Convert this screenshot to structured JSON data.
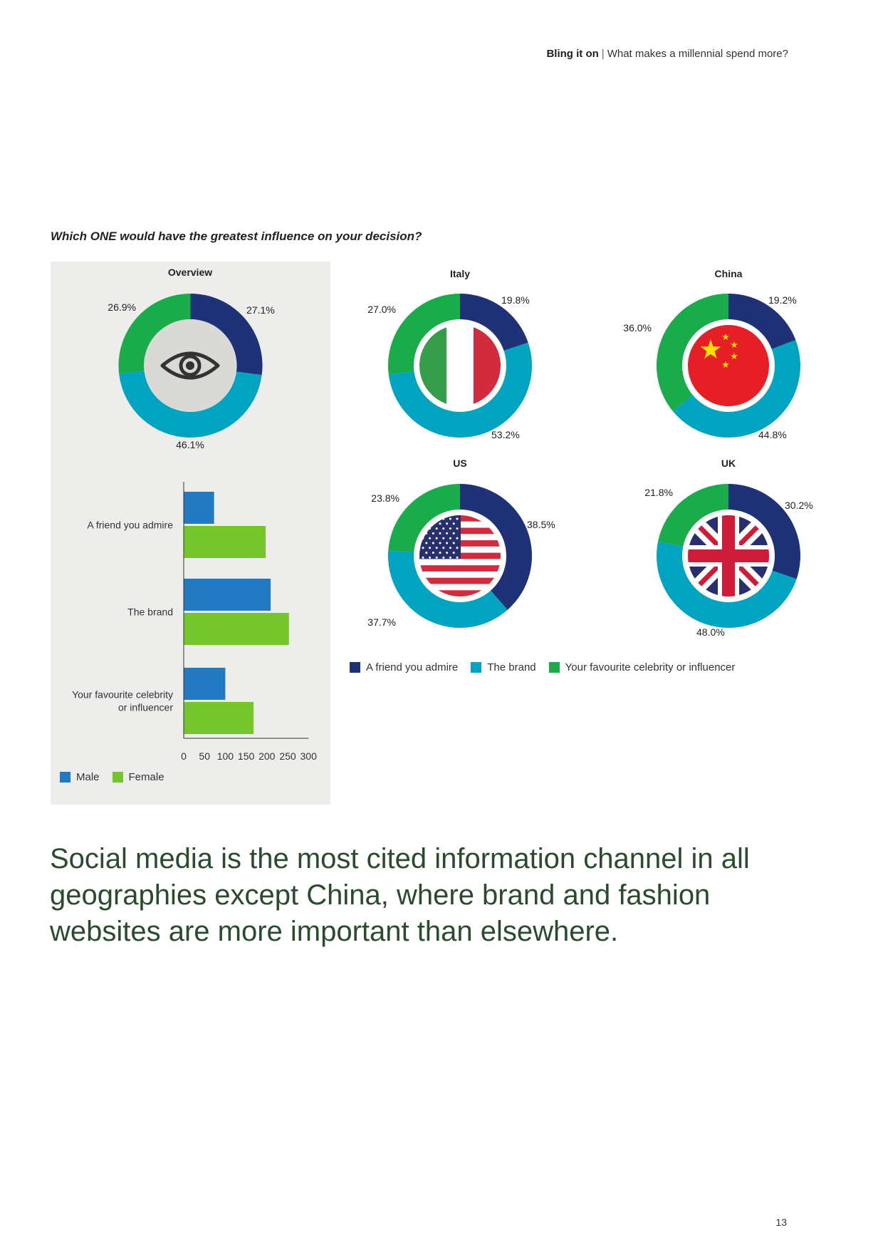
{
  "header": {
    "title_bold": "Bling it on",
    "separator": "|",
    "subtitle": "What makes a millennial spend more?"
  },
  "question": "Which ONE would have the greatest influence on your decision?",
  "colors": {
    "friend": "#1f3177",
    "brand": "#00a4c0",
    "celebrity": "#1aab4a",
    "male": "#2179c1",
    "female": "#74c62c",
    "panel": "#ededeb"
  },
  "chart_data": [
    {
      "type": "pie",
      "title": "Overview",
      "icon": "eye-icon",
      "categories": [
        "A friend you admire",
        "The brand",
        "Your favourite celebrity or influencer"
      ],
      "values": [
        27.1,
        46.1,
        26.9
      ],
      "labels": [
        "27.1%",
        "46.1%",
        "26.9%"
      ]
    },
    {
      "type": "pie",
      "title": "Italy",
      "icon": "italy-flag-icon",
      "categories": [
        "A friend you admire",
        "The brand",
        "Your favourite celebrity or influencer"
      ],
      "values": [
        19.8,
        53.2,
        27.0
      ],
      "labels": [
        "19.8%",
        "53.2%",
        "27.0%"
      ]
    },
    {
      "type": "pie",
      "title": "China",
      "icon": "china-flag-icon",
      "categories": [
        "A friend you admire",
        "The brand",
        "Your favourite celebrity or influencer"
      ],
      "values": [
        19.2,
        44.8,
        36.0
      ],
      "labels": [
        "19.2%",
        "44.8%",
        "36.0%"
      ]
    },
    {
      "type": "pie",
      "title": "US",
      "icon": "us-flag-icon",
      "categories": [
        "A friend you admire",
        "The brand",
        "Your favourite celebrity or influencer"
      ],
      "values": [
        38.5,
        37.7,
        23.8
      ],
      "labels": [
        "38.5%",
        "37.7%",
        "23.8%"
      ]
    },
    {
      "type": "pie",
      "title": "UK",
      "icon": "uk-flag-icon",
      "categories": [
        "A friend you admire",
        "The brand",
        "Your favourite celebrity or influencer"
      ],
      "values": [
        30.2,
        48.0,
        21.8
      ],
      "labels": [
        "30.2%",
        "48.0%",
        "21.8%"
      ]
    },
    {
      "type": "bar",
      "orientation": "horizontal",
      "categories": [
        "A friend you admire",
        "The brand",
        "Your favourite celebrity or influencer"
      ],
      "category_lines": [
        [
          "A friend you admire"
        ],
        [
          "The brand"
        ],
        [
          "Your favourite celebrity",
          "or influencer"
        ]
      ],
      "series": [
        {
          "name": "Male",
          "values": [
            73,
            209,
            100
          ]
        },
        {
          "name": "Female",
          "values": [
            197,
            253,
            168
          ]
        }
      ],
      "xlim": [
        0,
        300
      ],
      "xticks": [
        "0",
        "50",
        "100",
        "150",
        "200",
        "250",
        "300"
      ],
      "legend": "bottom-left"
    }
  ],
  "legend_donuts": [
    "A friend you admire",
    "The brand",
    "Your favourite celebrity or influencer"
  ],
  "legend_bars": [
    "Male",
    "Female"
  ],
  "headline": "Social media is the most cited information channel in all geographies except China, where brand and fashion websites are more important than elsewhere.",
  "page_number": "13"
}
